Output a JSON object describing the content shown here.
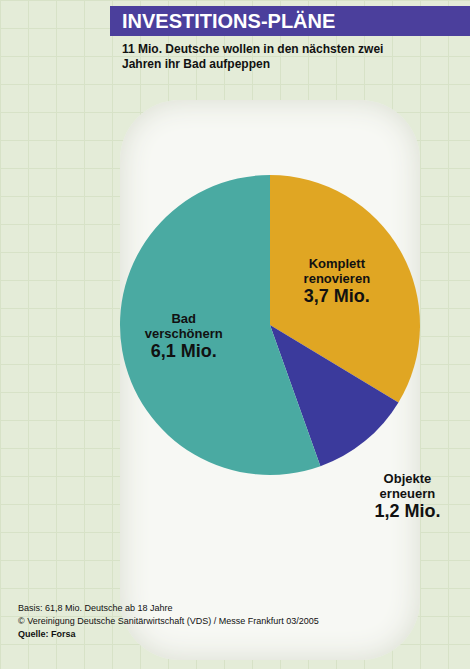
{
  "chart_data": {
    "type": "pie",
    "title": "INVESTITIONS-PLÄNE",
    "subtitle": "11 Mio. Deutsche wollen in den nächsten zwei Jahren ihr Bad aufpeppen",
    "categories": [
      "Komplett renovieren",
      "Objekte erneuern",
      "Bad verschönern"
    ],
    "values": [
      3.7,
      1.2,
      6.1
    ],
    "value_labels": [
      "3,7 Mio.",
      "1,2 Mio.",
      "6,1 Mio."
    ],
    "colors": [
      "#e0a623",
      "#3b3a9c",
      "#4aaaa2"
    ],
    "data_labels": true,
    "annotations": [
      "Basis: 61,8 Mio. Deutsche ab 18 Jahre",
      "© Vereinigung Deutsche Sanitärwirtschaft (VDS) / Messe Frankfurt 03/2005",
      "Quelle: Forsa"
    ]
  }
}
